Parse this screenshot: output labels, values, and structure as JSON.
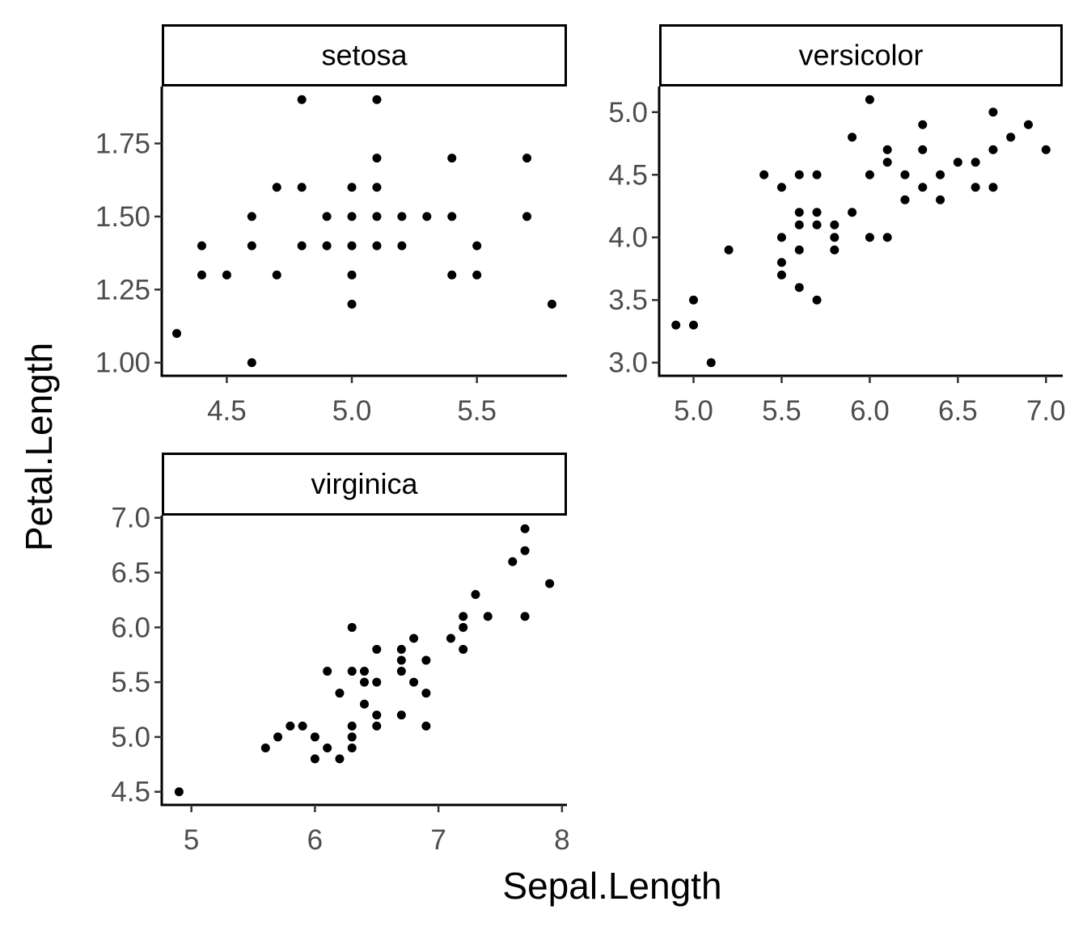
{
  "chart_data": {
    "type": "scatter",
    "layout": "facet_wrap",
    "xlabel": "Sepal.Length",
    "ylabel": "Petal.Length",
    "grid": false,
    "point_color": "#000000",
    "facets": [
      {
        "name": "setosa",
        "xlim": [
          4.24,
          5.86
        ],
        "ylim": [
          0.955,
          1.945
        ],
        "xticks": [
          4.5,
          5.0,
          5.5
        ],
        "xtick_labels": [
          "4.5",
          "5.0",
          "5.5"
        ],
        "yticks": [
          1.0,
          1.25,
          1.5,
          1.75
        ],
        "ytick_labels": [
          "1.00",
          "1.25",
          "1.50",
          "1.75"
        ],
        "points": [
          [
            4.3,
            1.1
          ],
          [
            4.4,
            1.4
          ],
          [
            4.4,
            1.3
          ],
          [
            4.5,
            1.3
          ],
          [
            4.6,
            1.0
          ],
          [
            4.6,
            1.4
          ],
          [
            4.6,
            1.5
          ],
          [
            4.7,
            1.3
          ],
          [
            4.7,
            1.6
          ],
          [
            4.8,
            1.4
          ],
          [
            4.8,
            1.6
          ],
          [
            4.8,
            1.9
          ],
          [
            4.9,
            1.4
          ],
          [
            4.9,
            1.5
          ],
          [
            5.0,
            1.2
          ],
          [
            5.0,
            1.3
          ],
          [
            5.0,
            1.4
          ],
          [
            5.0,
            1.5
          ],
          [
            5.0,
            1.6
          ],
          [
            5.1,
            1.4
          ],
          [
            5.1,
            1.5
          ],
          [
            5.1,
            1.6
          ],
          [
            5.1,
            1.7
          ],
          [
            5.1,
            1.9
          ],
          [
            5.2,
            1.4
          ],
          [
            5.2,
            1.5
          ],
          [
            5.3,
            1.5
          ],
          [
            5.4,
            1.3
          ],
          [
            5.4,
            1.5
          ],
          [
            5.4,
            1.7
          ],
          [
            5.5,
            1.3
          ],
          [
            5.5,
            1.4
          ],
          [
            5.7,
            1.5
          ],
          [
            5.7,
            1.7
          ],
          [
            5.8,
            1.2
          ]
        ]
      },
      {
        "name": "versicolor",
        "xlim": [
          4.805,
          7.095
        ],
        "ylim": [
          2.895,
          5.205
        ],
        "xticks": [
          5.0,
          5.5,
          6.0,
          6.5,
          7.0
        ],
        "xtick_labels": [
          "5.0",
          "5.5",
          "6.0",
          "6.5",
          "7.0"
        ],
        "yticks": [
          3.0,
          3.5,
          4.0,
          4.5,
          5.0
        ],
        "ytick_labels": [
          "3.0",
          "3.5",
          "4.0",
          "4.5",
          "5.0"
        ],
        "points": [
          [
            4.9,
            3.3
          ],
          [
            5.0,
            3.3
          ],
          [
            5.0,
            3.5
          ],
          [
            5.1,
            3.0
          ],
          [
            5.2,
            3.9
          ],
          [
            5.4,
            4.5
          ],
          [
            5.5,
            3.7
          ],
          [
            5.5,
            3.8
          ],
          [
            5.5,
            4.0
          ],
          [
            5.5,
            4.4
          ],
          [
            5.6,
            3.6
          ],
          [
            5.6,
            3.9
          ],
          [
            5.6,
            4.1
          ],
          [
            5.6,
            4.2
          ],
          [
            5.6,
            4.5
          ],
          [
            5.7,
            3.5
          ],
          [
            5.7,
            4.1
          ],
          [
            5.7,
            4.2
          ],
          [
            5.7,
            4.5
          ],
          [
            5.8,
            3.9
          ],
          [
            5.8,
            4.0
          ],
          [
            5.8,
            4.1
          ],
          [
            5.9,
            4.2
          ],
          [
            5.9,
            4.8
          ],
          [
            6.0,
            4.0
          ],
          [
            6.0,
            4.5
          ],
          [
            6.0,
            5.1
          ],
          [
            6.1,
            4.0
          ],
          [
            6.1,
            4.6
          ],
          [
            6.1,
            4.7
          ],
          [
            6.2,
            4.3
          ],
          [
            6.2,
            4.5
          ],
          [
            6.3,
            4.4
          ],
          [
            6.3,
            4.7
          ],
          [
            6.3,
            4.9
          ],
          [
            6.4,
            4.3
          ],
          [
            6.4,
            4.5
          ],
          [
            6.5,
            4.6
          ],
          [
            6.6,
            4.4
          ],
          [
            6.6,
            4.6
          ],
          [
            6.7,
            4.4
          ],
          [
            6.7,
            4.7
          ],
          [
            6.7,
            5.0
          ],
          [
            6.8,
            4.8
          ],
          [
            6.9,
            4.9
          ],
          [
            7.0,
            4.7
          ]
        ]
      },
      {
        "name": "virginica",
        "xlim": [
          4.76,
          8.04
        ],
        "ylim": [
          4.38,
          7.02
        ],
        "xticks": [
          5,
          6,
          7,
          8
        ],
        "xtick_labels": [
          "5",
          "6",
          "7",
          "8"
        ],
        "yticks": [
          4.5,
          5.0,
          5.5,
          6.0,
          6.5,
          7.0
        ],
        "ytick_labels": [
          "4.5",
          "5.0",
          "5.5",
          "6.0",
          "6.5",
          "7.0"
        ],
        "points": [
          [
            4.9,
            4.5
          ],
          [
            5.6,
            4.9
          ],
          [
            5.7,
            5.0
          ],
          [
            5.8,
            5.1
          ],
          [
            5.9,
            5.1
          ],
          [
            6.0,
            4.8
          ],
          [
            6.0,
            5.0
          ],
          [
            6.1,
            4.9
          ],
          [
            6.1,
            5.6
          ],
          [
            6.2,
            4.8
          ],
          [
            6.2,
            5.4
          ],
          [
            6.3,
            4.9
          ],
          [
            6.3,
            5.0
          ],
          [
            6.3,
            5.1
          ],
          [
            6.3,
            5.6
          ],
          [
            6.3,
            6.0
          ],
          [
            6.4,
            5.3
          ],
          [
            6.4,
            5.5
          ],
          [
            6.4,
            5.6
          ],
          [
            6.5,
            5.1
          ],
          [
            6.5,
            5.2
          ],
          [
            6.5,
            5.5
          ],
          [
            6.5,
            5.8
          ],
          [
            6.7,
            5.2
          ],
          [
            6.7,
            5.6
          ],
          [
            6.7,
            5.7
          ],
          [
            6.7,
            5.8
          ],
          [
            6.8,
            5.5
          ],
          [
            6.8,
            5.9
          ],
          [
            6.9,
            5.1
          ],
          [
            6.9,
            5.4
          ],
          [
            6.9,
            5.7
          ],
          [
            7.1,
            5.9
          ],
          [
            7.2,
            5.8
          ],
          [
            7.2,
            6.0
          ],
          [
            7.2,
            6.1
          ],
          [
            7.3,
            6.3
          ],
          [
            7.4,
            6.1
          ],
          [
            7.6,
            6.6
          ],
          [
            7.7,
            6.1
          ],
          [
            7.7,
            6.7
          ],
          [
            7.7,
            6.9
          ],
          [
            7.9,
            6.4
          ]
        ]
      }
    ]
  }
}
